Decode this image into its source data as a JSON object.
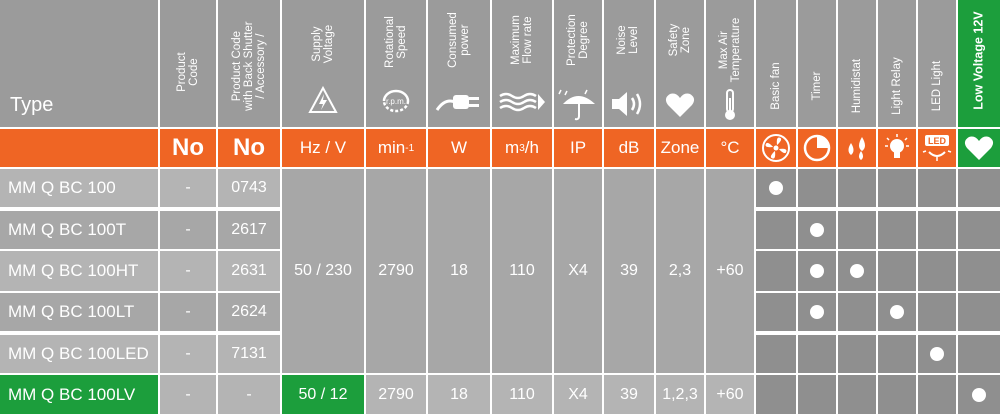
{
  "header": {
    "type": "Type",
    "product_code": "Product\nCode",
    "back_shutter": "Product Code\nwith Back Shutter\n/ Accessory /",
    "supply_voltage": "Supply\nVoltage",
    "rotational_speed": "Rotational\nSpeed",
    "consumed_power": "Consumed\npower",
    "flow_rate": "Maximum\nFlow rate",
    "protection": "Protection\nDegree",
    "noise": "Noise\nLevel",
    "safety_zone": "Safety\nZone",
    "max_air_temp": "Max Air\nTemperature",
    "basic_fan": "Basic fan",
    "timer": "Timer",
    "humidistat": "Humidistat",
    "light_relay": "Light Relay",
    "led_light": "LED Light",
    "low_voltage": "Low Voltage 12V",
    "rpm_icon_text": "r.p.m."
  },
  "units": {
    "product_code": "No",
    "back_shutter": "No",
    "voltage": "Hz / V",
    "speed": "min",
    "speed_exp": "-1",
    "power": "W",
    "flow": "m",
    "flow_exp": "3",
    "flow_tail": "/h",
    "ip": "IP",
    "noise": "dB",
    "zone": "Zone",
    "temp": "°C",
    "led_icon_text": "LED"
  },
  "shared": {
    "voltage": "50 / 230",
    "speed": "2790",
    "power": "18",
    "flow": "110",
    "ip": "X4",
    "noise": "39",
    "zone": "2,3",
    "temp": "+60"
  },
  "rows": [
    {
      "type": "MM Q BC 100",
      "code": "-",
      "shutter": "0743"
    },
    {
      "type": "MM Q BC 100T",
      "code": "-",
      "shutter": "2617"
    },
    {
      "type": "MM Q BC 100HT",
      "code": "-",
      "shutter": "2631"
    },
    {
      "type": "MM Q BC 100LT",
      "code": "-",
      "shutter": "2624"
    },
    {
      "type": "MM Q BC 100LED",
      "code": "-",
      "shutter": "7131"
    }
  ],
  "lv_row": {
    "type": "MM Q BC 100LV",
    "code": "-",
    "shutter": "-",
    "voltage": "50 / 12",
    "speed": "2790",
    "power": "18",
    "flow": "110",
    "ip": "X4",
    "noise": "39",
    "zone": "1,2,3",
    "temp": "+60"
  },
  "features": [
    [
      true,
      false,
      false,
      false,
      false,
      false
    ],
    [
      false,
      true,
      false,
      false,
      false,
      false
    ],
    [
      false,
      true,
      true,
      false,
      false,
      false
    ],
    [
      false,
      true,
      false,
      true,
      false,
      false
    ],
    [
      false,
      false,
      false,
      false,
      true,
      false
    ],
    [
      false,
      false,
      false,
      false,
      false,
      true
    ]
  ],
  "colors": {
    "header_grey": "#9b9b9b",
    "accent_orange": "#ef6524",
    "accent_green": "#1c9e3c"
  },
  "icons": [
    "warning-bolt-icon",
    "rpm-rotation-icon",
    "plug-icon",
    "airflow-icon",
    "umbrella-rain-icon",
    "speaker-icon",
    "heart-icon",
    "thermometer-icon",
    "fan-icon",
    "timer-icon",
    "humidity-drops-icon",
    "lightbulb-icon",
    "led-light-icon",
    "heart-icon"
  ]
}
